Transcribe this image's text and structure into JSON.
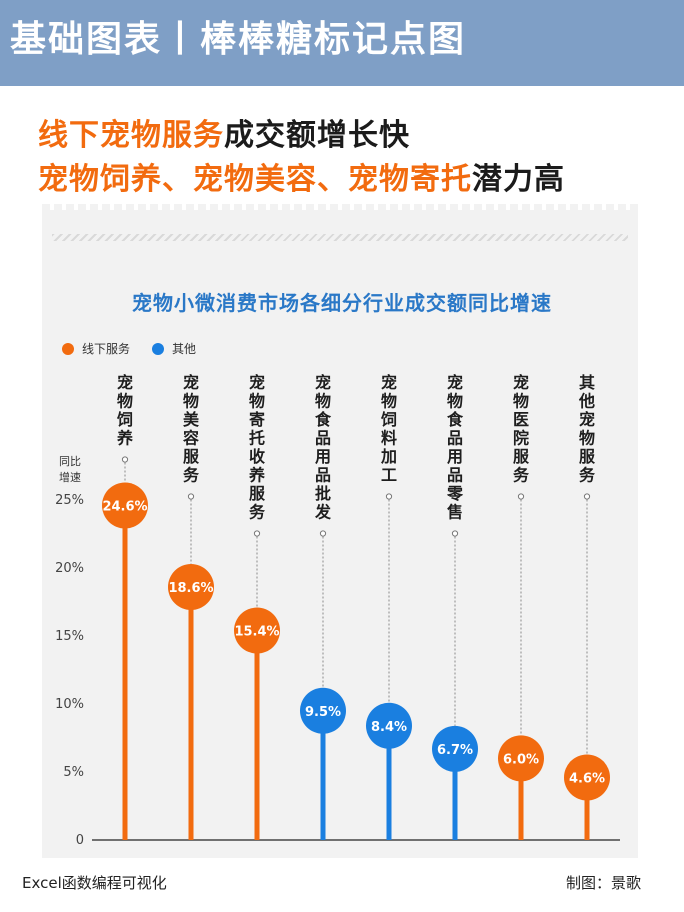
{
  "banner": {
    "title": "基础图表丨棒棒糖标记点图"
  },
  "headline": {
    "line1_highlight": "线下宠物服务",
    "line1_rest": "成交额增长快",
    "line2_highlight1": "宠物饲养、宠物美容、宠物寄托",
    "line2_rest": "潜力高"
  },
  "footer": {
    "left": "Excel函数编程可视化",
    "right": "制图：景歌"
  },
  "colors": {
    "orange": "#f26b0f",
    "blue": "#1a7fe0",
    "title_blue": "#2a78c7",
    "banner": "#7f9fc6"
  },
  "chart_data": {
    "type": "lollipop",
    "title": "宠物小微消费市场各细分行业成交额同比增速",
    "ylabel": "同比增速",
    "ylim": [
      0,
      25
    ],
    "yticks": [
      "0",
      "5%",
      "10%",
      "15%",
      "20%",
      "25%"
    ],
    "legend": [
      {
        "name": "线下服务",
        "color": "#f26b0f"
      },
      {
        "name": "其他",
        "color": "#1a7fe0"
      }
    ],
    "categories": [
      "宠物饲养",
      "宠物美容服务",
      "宠物寄托收养服务",
      "宠物食品用品批发",
      "宠物饲料加工",
      "宠物食品用品零售",
      "宠物医院服务",
      "其他宠物服务"
    ],
    "values": [
      24.6,
      18.6,
      15.4,
      9.5,
      8.4,
      6.7,
      6.0,
      4.6
    ],
    "labels": [
      "24.6%",
      "18.6%",
      "15.4%",
      "9.5%",
      "8.4%",
      "6.7%",
      "6.0%",
      "4.6%"
    ],
    "groups": [
      "线下服务",
      "线下服务",
      "线下服务",
      "其他",
      "其他",
      "其他",
      "线下服务",
      "线下服务"
    ]
  }
}
